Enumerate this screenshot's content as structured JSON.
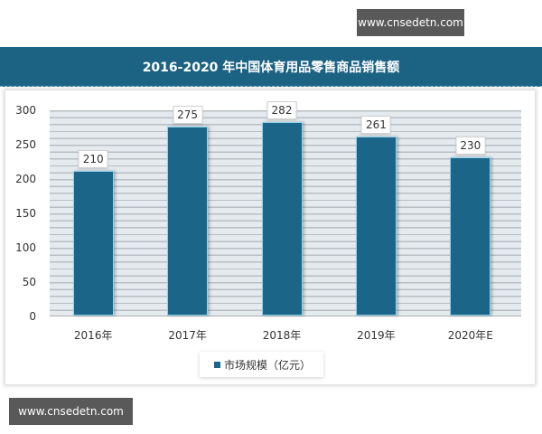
{
  "watermarks": {
    "top": "www.cnsedetn.com",
    "bottom": "www.cnsedetn.com"
  },
  "colors": {
    "title_bar": "#1c6383",
    "bar": "#1b6589",
    "plot_bg": "#e4eaee",
    "watermark_bg": "#595959"
  },
  "chart_data": {
    "type": "bar",
    "title": "2016-2020 年中国体育用品零售商品销售额",
    "categories": [
      "2016年",
      "2017年",
      "2018年",
      "2019年",
      "2020年E"
    ],
    "series": [
      {
        "name": "市场规模（亿元）",
        "values": [
          210,
          275,
          282,
          261,
          230
        ]
      }
    ],
    "values": [
      210,
      275,
      282,
      261,
      230
    ],
    "data_labels": [
      "210",
      "275",
      "282",
      "261",
      "230"
    ],
    "xlabel": "",
    "ylabel": "",
    "ylim": [
      0,
      300
    ],
    "yticks": [
      "300",
      "250",
      "200",
      "150",
      "100",
      "50",
      "0"
    ],
    "grid": true,
    "legend_position": "bottom"
  }
}
